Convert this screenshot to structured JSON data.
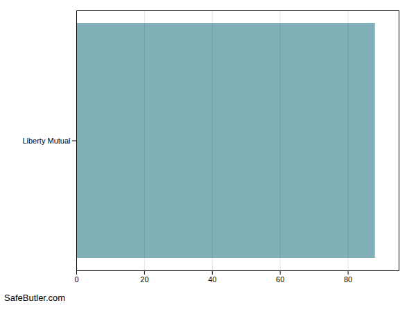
{
  "chart_data": {
    "type": "bar",
    "orientation": "horizontal",
    "categories": [
      "Liberty Mutual"
    ],
    "values": [
      88
    ],
    "color": "#82B0B8",
    "xlim": [
      0,
      95
    ],
    "xticks": [
      0,
      20,
      40,
      60,
      80
    ],
    "grid": true,
    "annotations": [
      "SafeButler.com"
    ]
  }
}
